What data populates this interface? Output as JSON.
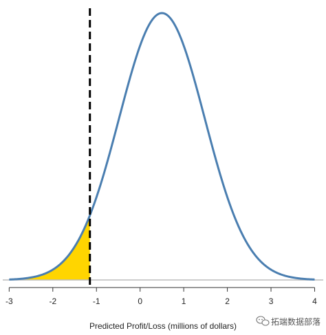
{
  "chart_data": {
    "type": "line",
    "title": "",
    "xlabel": "Predicted Profit/Loss (millions of dollars)",
    "ylabel": "",
    "xlim": [
      -3.1,
      4.15
    ],
    "xticks": [
      -3,
      -2,
      -1,
      0,
      1,
      2,
      3,
      4
    ],
    "xtick_labels": [
      "-3",
      "-2",
      "-1",
      "0",
      "1",
      "2",
      "3",
      "4"
    ],
    "grid": false,
    "legend": "none",
    "series": [
      {
        "kind": "normal-density-curve",
        "mean": 0.5,
        "sd": 0.98,
        "x_range": [
          -3.0,
          4.0
        ],
        "color": "#4a7eb0"
      }
    ],
    "shaded_region": {
      "x_from": -3.0,
      "x_to": -1.15,
      "color": "#ffd500"
    },
    "threshold_line": {
      "x": -1.15,
      "style": "dashed",
      "color": "#000000"
    },
    "baseline_color": "#bbbbbb"
  },
  "watermark": {
    "text": "拓端数据部落"
  }
}
